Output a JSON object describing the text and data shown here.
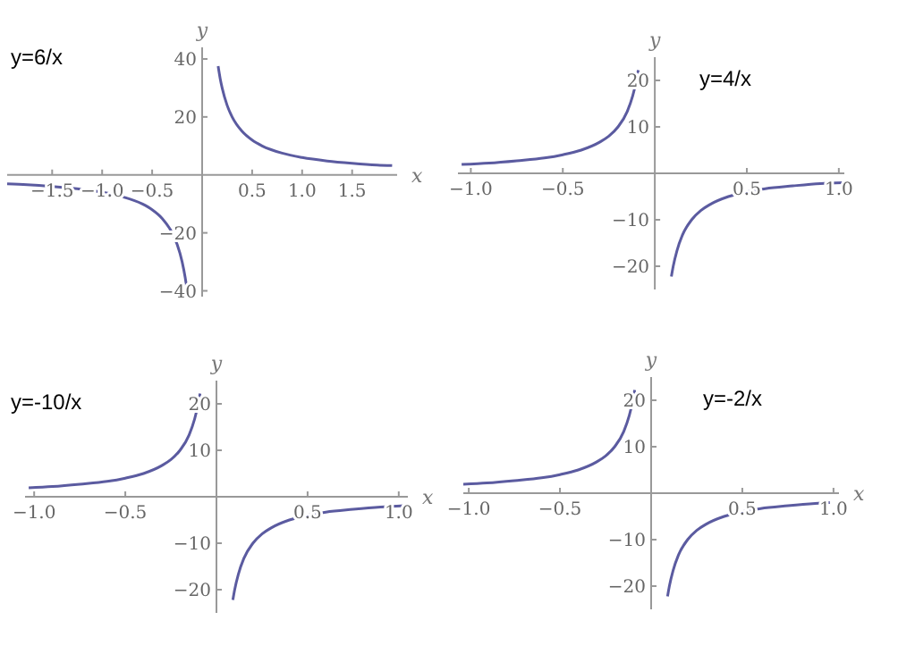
{
  "chart_data": [
    {
      "type": "line",
      "title": "y=6/x",
      "xlabel": "x",
      "ylabel": "y",
      "xlim": [
        -1.95,
        1.95
      ],
      "ylim": [
        -42,
        44
      ],
      "xticks": [
        {
          "value": -1.5,
          "label": "−1.5"
        },
        {
          "value": -1,
          "label": "−1.0"
        },
        {
          "value": -0.5,
          "label": "−0.5"
        },
        {
          "value": 0.5,
          "label": "0.5"
        },
        {
          "value": 1,
          "label": "1.0"
        },
        {
          "value": 1.5,
          "label": "1.5"
        }
      ],
      "yticks": [
        {
          "value": -40,
          "label": "−40"
        },
        {
          "value": -20,
          "label": "−20"
        },
        20,
        40
      ],
      "series": [
        {
          "color": "#5b5ba0",
          "x": [
            -1.95,
            -1.75,
            -1.5,
            -1.25,
            -1,
            -0.8,
            -0.6,
            -0.5,
            -0.4,
            -0.3,
            -0.25,
            -0.2,
            -0.17,
            -0.15
          ],
          "values": [
            -3.1,
            -3.4,
            -4,
            -4.8,
            -6,
            -7.5,
            -10,
            -12,
            -15,
            -20,
            -24,
            -30,
            -35.3,
            -40
          ]
        },
        {
          "color": "#5b5ba0",
          "x": [
            0.16,
            0.18,
            0.2,
            0.25,
            0.3,
            0.4,
            0.5,
            0.6,
            0.8,
            1,
            1.25,
            1.5,
            1.75,
            1.9
          ],
          "values": [
            37.5,
            33.3,
            30,
            24,
            20,
            15,
            12,
            10,
            7.5,
            6,
            4.8,
            4,
            3.4,
            3.2
          ]
        }
      ]
    },
    {
      "type": "line",
      "title": "y=4/x",
      "ylabel": "y",
      "xlim": [
        -1.07,
        1.03
      ],
      "ylim": [
        -25,
        25
      ],
      "xticks": [
        {
          "value": -1,
          "label": "−1.0"
        },
        {
          "value": -0.5,
          "label": "−0.5"
        },
        {
          "value": 0.5,
          "label": "0.5"
        },
        {
          "value": 1,
          "label": "1.0"
        }
      ],
      "yticks": [
        {
          "value": -20,
          "label": "−20"
        },
        {
          "value": -10,
          "label": "−10"
        },
        10,
        20
      ],
      "series": [
        {
          "color": "#5b5ba0",
          "x": [
            -1.05,
            -0.9,
            -0.75,
            -0.6,
            -0.5,
            -0.4,
            -0.3,
            -0.25,
            -0.2,
            -0.15,
            -0.12,
            -0.1,
            -0.09
          ],
          "values": [
            1.9,
            2.2,
            2.7,
            3.3,
            4,
            5,
            6.7,
            8,
            10,
            13.3,
            16.7,
            20,
            22.2
          ]
        },
        {
          "color": "#5b5ba0",
          "x": [
            0.09,
            0.1,
            0.12,
            0.15,
            0.2,
            0.25,
            0.3,
            0.4,
            0.5,
            0.6,
            0.75,
            0.9,
            1.02
          ],
          "values": [
            -22.2,
            -20,
            -16.7,
            -13.3,
            -10,
            -8,
            -6.7,
            -5,
            -4,
            -3.3,
            -2.7,
            -2.2,
            -2
          ]
        }
      ]
    },
    {
      "type": "line",
      "title": "y=-10/x",
      "xlabel": "x",
      "ylabel": "y",
      "xlim": [
        -1.05,
        1.05
      ],
      "ylim": [
        -25,
        25
      ],
      "xticks": [
        {
          "value": -1,
          "label": "−1.0"
        },
        {
          "value": -0.5,
          "label": "−0.5"
        },
        {
          "value": 0.5,
          "label": "0.5"
        },
        {
          "value": 1,
          "label": "1.0"
        }
      ],
      "yticks": [
        {
          "value": -20,
          "label": "−20"
        },
        {
          "value": -10,
          "label": "−10"
        },
        10,
        20
      ],
      "series": [
        {
          "color": "#5b5ba0",
          "x": [
            -1.03,
            -0.9,
            -0.75,
            -0.6,
            -0.5,
            -0.4,
            -0.3,
            -0.25,
            -0.2,
            -0.15,
            -0.12,
            -0.1,
            -0.09
          ],
          "values": [
            1.9,
            2.2,
            2.7,
            3.3,
            4,
            5,
            6.7,
            8,
            10,
            13.3,
            16.7,
            20,
            22.2
          ]
        },
        {
          "color": "#5b5ba0",
          "x": [
            0.09,
            0.1,
            0.12,
            0.15,
            0.2,
            0.25,
            0.3,
            0.4,
            0.5,
            0.6,
            0.75,
            0.9,
            1.03
          ],
          "values": [
            -22.2,
            -20,
            -16.7,
            -13.3,
            -10,
            -8,
            -6.7,
            -5,
            -4,
            -3.3,
            -2.7,
            -2.2,
            -1.9
          ]
        }
      ]
    },
    {
      "type": "line",
      "title": "y=-2/x",
      "xlabel": "x",
      "ylabel": "y",
      "xlim": [
        -1.03,
        1.03
      ],
      "ylim": [
        -25,
        25
      ],
      "xticks": [
        {
          "value": -1,
          "label": "−1.0"
        },
        {
          "value": -0.5,
          "label": "−0.5"
        },
        {
          "value": 0.5,
          "label": "0.5"
        },
        {
          "value": 1,
          "label": "1.0"
        }
      ],
      "yticks": [
        {
          "value": -20,
          "label": "−20"
        },
        {
          "value": -10,
          "label": "−10"
        },
        10,
        20
      ],
      "series": [
        {
          "color": "#5b5ba0",
          "x": [
            -1.03,
            -0.9,
            -0.75,
            -0.6,
            -0.5,
            -0.4,
            -0.3,
            -0.25,
            -0.2,
            -0.15,
            -0.12,
            -0.1,
            -0.09
          ],
          "values": [
            1.9,
            2.2,
            2.7,
            3.3,
            4,
            5,
            6.7,
            8,
            10,
            13.3,
            16.7,
            20,
            22.2
          ]
        },
        {
          "color": "#5b5ba0",
          "x": [
            0.09,
            0.1,
            0.12,
            0.15,
            0.2,
            0.25,
            0.3,
            0.4,
            0.5,
            0.6,
            0.75,
            0.9,
            0.98
          ],
          "values": [
            -22.2,
            -20,
            -16.7,
            -13.3,
            -10,
            -8,
            -6.7,
            -5,
            -4,
            -3.3,
            -2.7,
            -2.2,
            -2
          ]
        }
      ]
    }
  ]
}
